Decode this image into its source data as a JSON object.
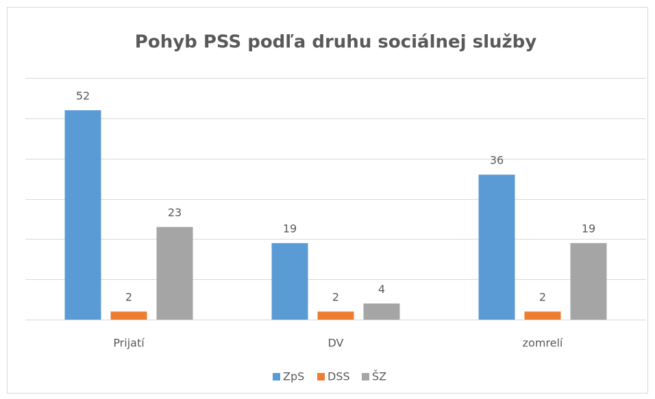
{
  "chart_data": {
    "type": "bar",
    "title": "Pohyb PSS podľa druhu sociálnej služby",
    "categories": [
      "Prijatí",
      "DV",
      "zomrelí"
    ],
    "series": [
      {
        "name": "ZpS",
        "color": "#5b9bd5",
        "values": [
          52,
          19,
          36
        ]
      },
      {
        "name": "DSS",
        "color": "#ed7d31",
        "values": [
          2,
          2,
          2
        ]
      },
      {
        "name": "ŠZ",
        "color": "#a5a5a5",
        "values": [
          23,
          4,
          19
        ]
      }
    ],
    "ylim": [
      0,
      60
    ],
    "yticks": [
      0,
      10,
      20,
      30,
      40,
      50,
      60
    ],
    "grid": true,
    "legend": "bottom"
  }
}
